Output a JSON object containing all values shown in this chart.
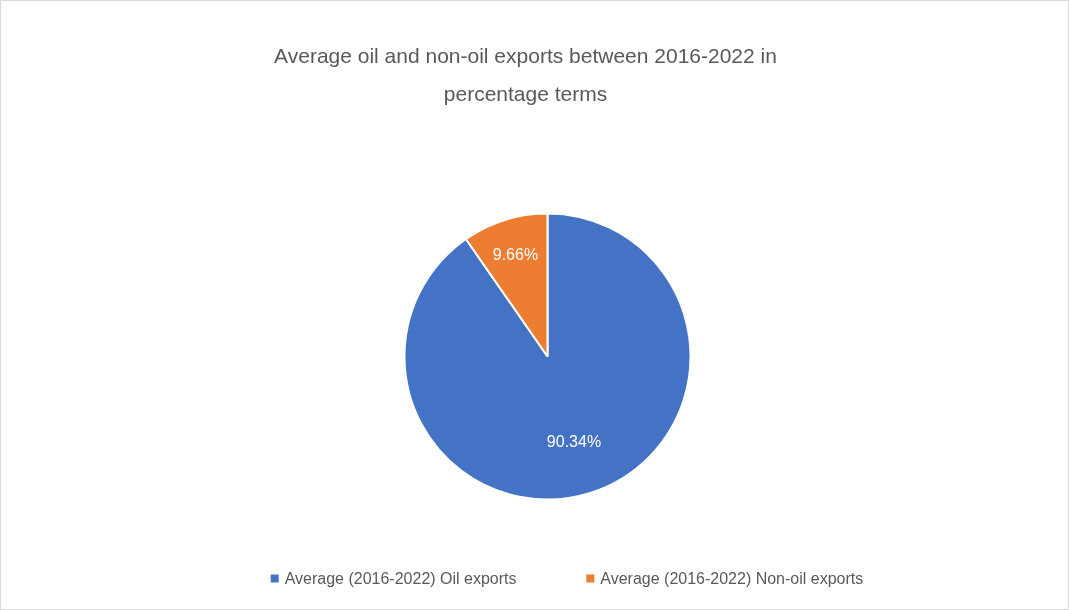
{
  "chart_data": {
    "type": "pie",
    "title": "Average oil and non-oil exports between 2016-2022 in percentage terms",
    "categories": [
      "Average (2016-2022) Oil exports",
      "Average (2016-2022) Non-oil exports"
    ],
    "values": [
      90.34,
      9.66
    ],
    "colors": [
      "#4472c4",
      "#ed7d31"
    ],
    "value_labels": [
      "90.34%",
      "9.66%"
    ],
    "legend": "bottom"
  }
}
